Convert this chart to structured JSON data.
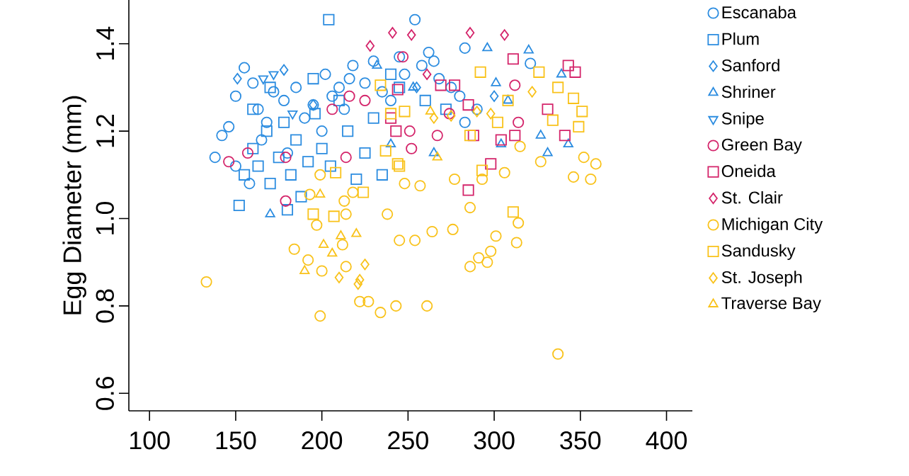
{
  "chart_data": {
    "type": "scatter",
    "ylabel": "Egg Diameter (mm)",
    "xlim": [
      88,
      415
    ],
    "ylim": [
      0.56,
      1.5
    ],
    "xticks": [
      100,
      150,
      200,
      250,
      300,
      350,
      400
    ],
    "yticks": [
      0.6,
      0.8,
      {
        "value": 1.0,
        "label": "1.0"
      },
      1.2,
      1.4
    ],
    "legend": "right",
    "grid": false,
    "series": [
      {
        "name": "Escanaba",
        "color": "#2b8ce0",
        "marker": "circle",
        "x": [
          138,
          142,
          146,
          150,
          155,
          160,
          163,
          168,
          172,
          178,
          185,
          190,
          195,
          202,
          206,
          210,
          216,
          218,
          225,
          230,
          235,
          245,
          254,
          258,
          262,
          268,
          275,
          280,
          150,
          158,
          165,
          180,
          200,
          213,
          240,
          248,
          283,
          290,
          283,
          321,
          265
        ],
        "values": [
          1.14,
          1.19,
          1.21,
          1.28,
          1.345,
          1.31,
          1.25,
          1.22,
          1.29,
          1.27,
          1.3,
          1.23,
          1.26,
          1.33,
          1.28,
          1.3,
          1.32,
          1.35,
          1.31,
          1.36,
          1.29,
          1.37,
          1.455,
          1.35,
          1.38,
          1.32,
          1.3,
          1.28,
          1.12,
          1.08,
          1.18,
          1.15,
          1.2,
          1.25,
          1.27,
          1.33,
          1.22,
          1.25,
          1.39,
          1.355,
          1.36
        ]
      },
      {
        "name": "Plum",
        "color": "#2b8ce0",
        "marker": "square",
        "x": [
          204,
          152,
          155,
          160,
          163,
          168,
          170,
          175,
          178,
          182,
          185,
          188,
          192,
          196,
          200,
          205,
          210,
          215,
          220,
          225,
          230,
          240,
          245,
          260,
          272,
          180,
          170,
          195,
          160,
          235
        ],
        "values": [
          1.455,
          1.03,
          1.1,
          1.16,
          1.12,
          1.2,
          1.08,
          1.14,
          1.22,
          1.1,
          1.18,
          1.05,
          1.13,
          1.24,
          1.16,
          1.12,
          1.27,
          1.2,
          1.09,
          1.15,
          1.23,
          1.33,
          1.3,
          1.27,
          1.25,
          1.02,
          1.3,
          1.32,
          1.25,
          1.1
        ]
      },
      {
        "name": "Sanford",
        "color": "#2b8ce0",
        "marker": "diamond",
        "x": [
          151,
          178,
          195,
          255,
          300
        ],
        "values": [
          1.32,
          1.34,
          1.26,
          1.3,
          1.28
        ]
      },
      {
        "name": "Shriner",
        "color": "#2b8ce0",
        "marker": "triangle",
        "x": [
          170,
          296,
          320,
          339,
          331,
          343,
          327,
          304,
          265,
          308,
          301,
          240,
          232,
          253
        ],
        "values": [
          1.01,
          1.39,
          1.385,
          1.33,
          1.15,
          1.17,
          1.19,
          1.17,
          1.15,
          1.27,
          1.31,
          1.17,
          1.35,
          1.3
        ]
      },
      {
        "name": "Snipe",
        "color": "#2b8ce0",
        "marker": "triangle-down",
        "x": [
          166,
          172,
          183
        ],
        "values": [
          1.32,
          1.33,
          1.24
        ]
      },
      {
        "name": "Green Bay",
        "color": "#d4246a",
        "marker": "circle",
        "x": [
          146,
          157,
          179,
          179,
          206,
          216,
          225,
          214,
          247,
          312,
          274,
          251,
          252,
          314,
          267
        ],
        "values": [
          1.13,
          1.15,
          1.14,
          1.04,
          1.25,
          1.28,
          1.27,
          1.14,
          1.37,
          1.305,
          1.24,
          1.2,
          1.16,
          1.22,
          1.19
        ]
      },
      {
        "name": "Oneida",
        "color": "#d4246a",
        "marker": "square",
        "x": [
          244,
          243,
          240,
          269,
          277,
          311,
          343,
          347,
          288,
          304,
          312,
          341,
          298,
          285,
          331,
          285
        ],
        "values": [
          1.295,
          1.2,
          1.23,
          1.305,
          1.305,
          1.365,
          1.35,
          1.335,
          1.19,
          1.18,
          1.19,
          1.19,
          1.125,
          1.065,
          1.25,
          1.26
        ]
      },
      {
        "name": "St. Clair",
        "color": "#d4246a",
        "marker": "diamond",
        "x": [
          241,
          228,
          252,
          286,
          306,
          261
        ],
        "values": [
          1.425,
          1.395,
          1.42,
          1.425,
          1.42,
          1.33
        ]
      },
      {
        "name": "Michigan City",
        "color": "#f9c21a",
        "marker": "circle",
        "x": [
          133,
          199,
          184,
          192,
          200,
          214,
          222,
          227,
          234,
          243,
          245,
          197,
          212,
          254,
          264,
          276,
          261,
          286,
          291,
          296,
          298,
          301,
          313,
          314,
          337,
          327,
          352,
          359,
          356,
          346,
          315,
          286,
          277,
          293,
          306,
          248,
          257,
          199,
          193,
          213,
          218,
          214,
          238
        ],
        "values": [
          0.855,
          0.777,
          0.93,
          0.905,
          0.88,
          0.89,
          0.81,
          0.81,
          0.785,
          0.8,
          0.95,
          0.985,
          0.94,
          0.95,
          0.97,
          0.975,
          0.8,
          0.89,
          0.91,
          0.9,
          0.925,
          0.96,
          0.945,
          0.99,
          0.69,
          1.13,
          1.14,
          1.125,
          1.09,
          1.095,
          1.165,
          1.025,
          1.09,
          1.09,
          1.105,
          1.08,
          1.075,
          1.1,
          1.055,
          1.04,
          1.06,
          1.01,
          1.01
        ]
      },
      {
        "name": "Sandusky",
        "color": "#f9c21a",
        "marker": "square",
        "x": [
          207,
          195,
          224,
          237,
          244,
          234,
          240,
          208,
          326,
          337,
          346,
          351,
          349,
          334,
          292,
          308,
          248,
          245,
          311,
          293,
          286,
          302
        ],
        "values": [
          1.005,
          1.01,
          1.06,
          1.155,
          1.125,
          1.305,
          1.24,
          1.105,
          1.335,
          1.3,
          1.275,
          1.245,
          1.21,
          1.225,
          1.335,
          1.27,
          1.245,
          1.12,
          1.015,
          1.11,
          1.19,
          1.22
        ]
      },
      {
        "name": "St. Joseph",
        "color": "#f9c21a",
        "marker": "diamond",
        "x": [
          225,
          222,
          210,
          221,
          265,
          275,
          290,
          298,
          322
        ],
        "values": [
          0.895,
          0.86,
          0.865,
          0.85,
          1.23,
          1.235,
          1.245,
          1.24,
          1.29
        ]
      },
      {
        "name": "Traverse Bay",
        "color": "#f9c21a",
        "marker": "triangle",
        "x": [
          211,
          220,
          201,
          190,
          206,
          199,
          267,
          263
        ],
        "values": [
          0.96,
          0.965,
          0.94,
          0.88,
          0.92,
          1.055,
          1.14,
          1.245
        ]
      }
    ]
  }
}
